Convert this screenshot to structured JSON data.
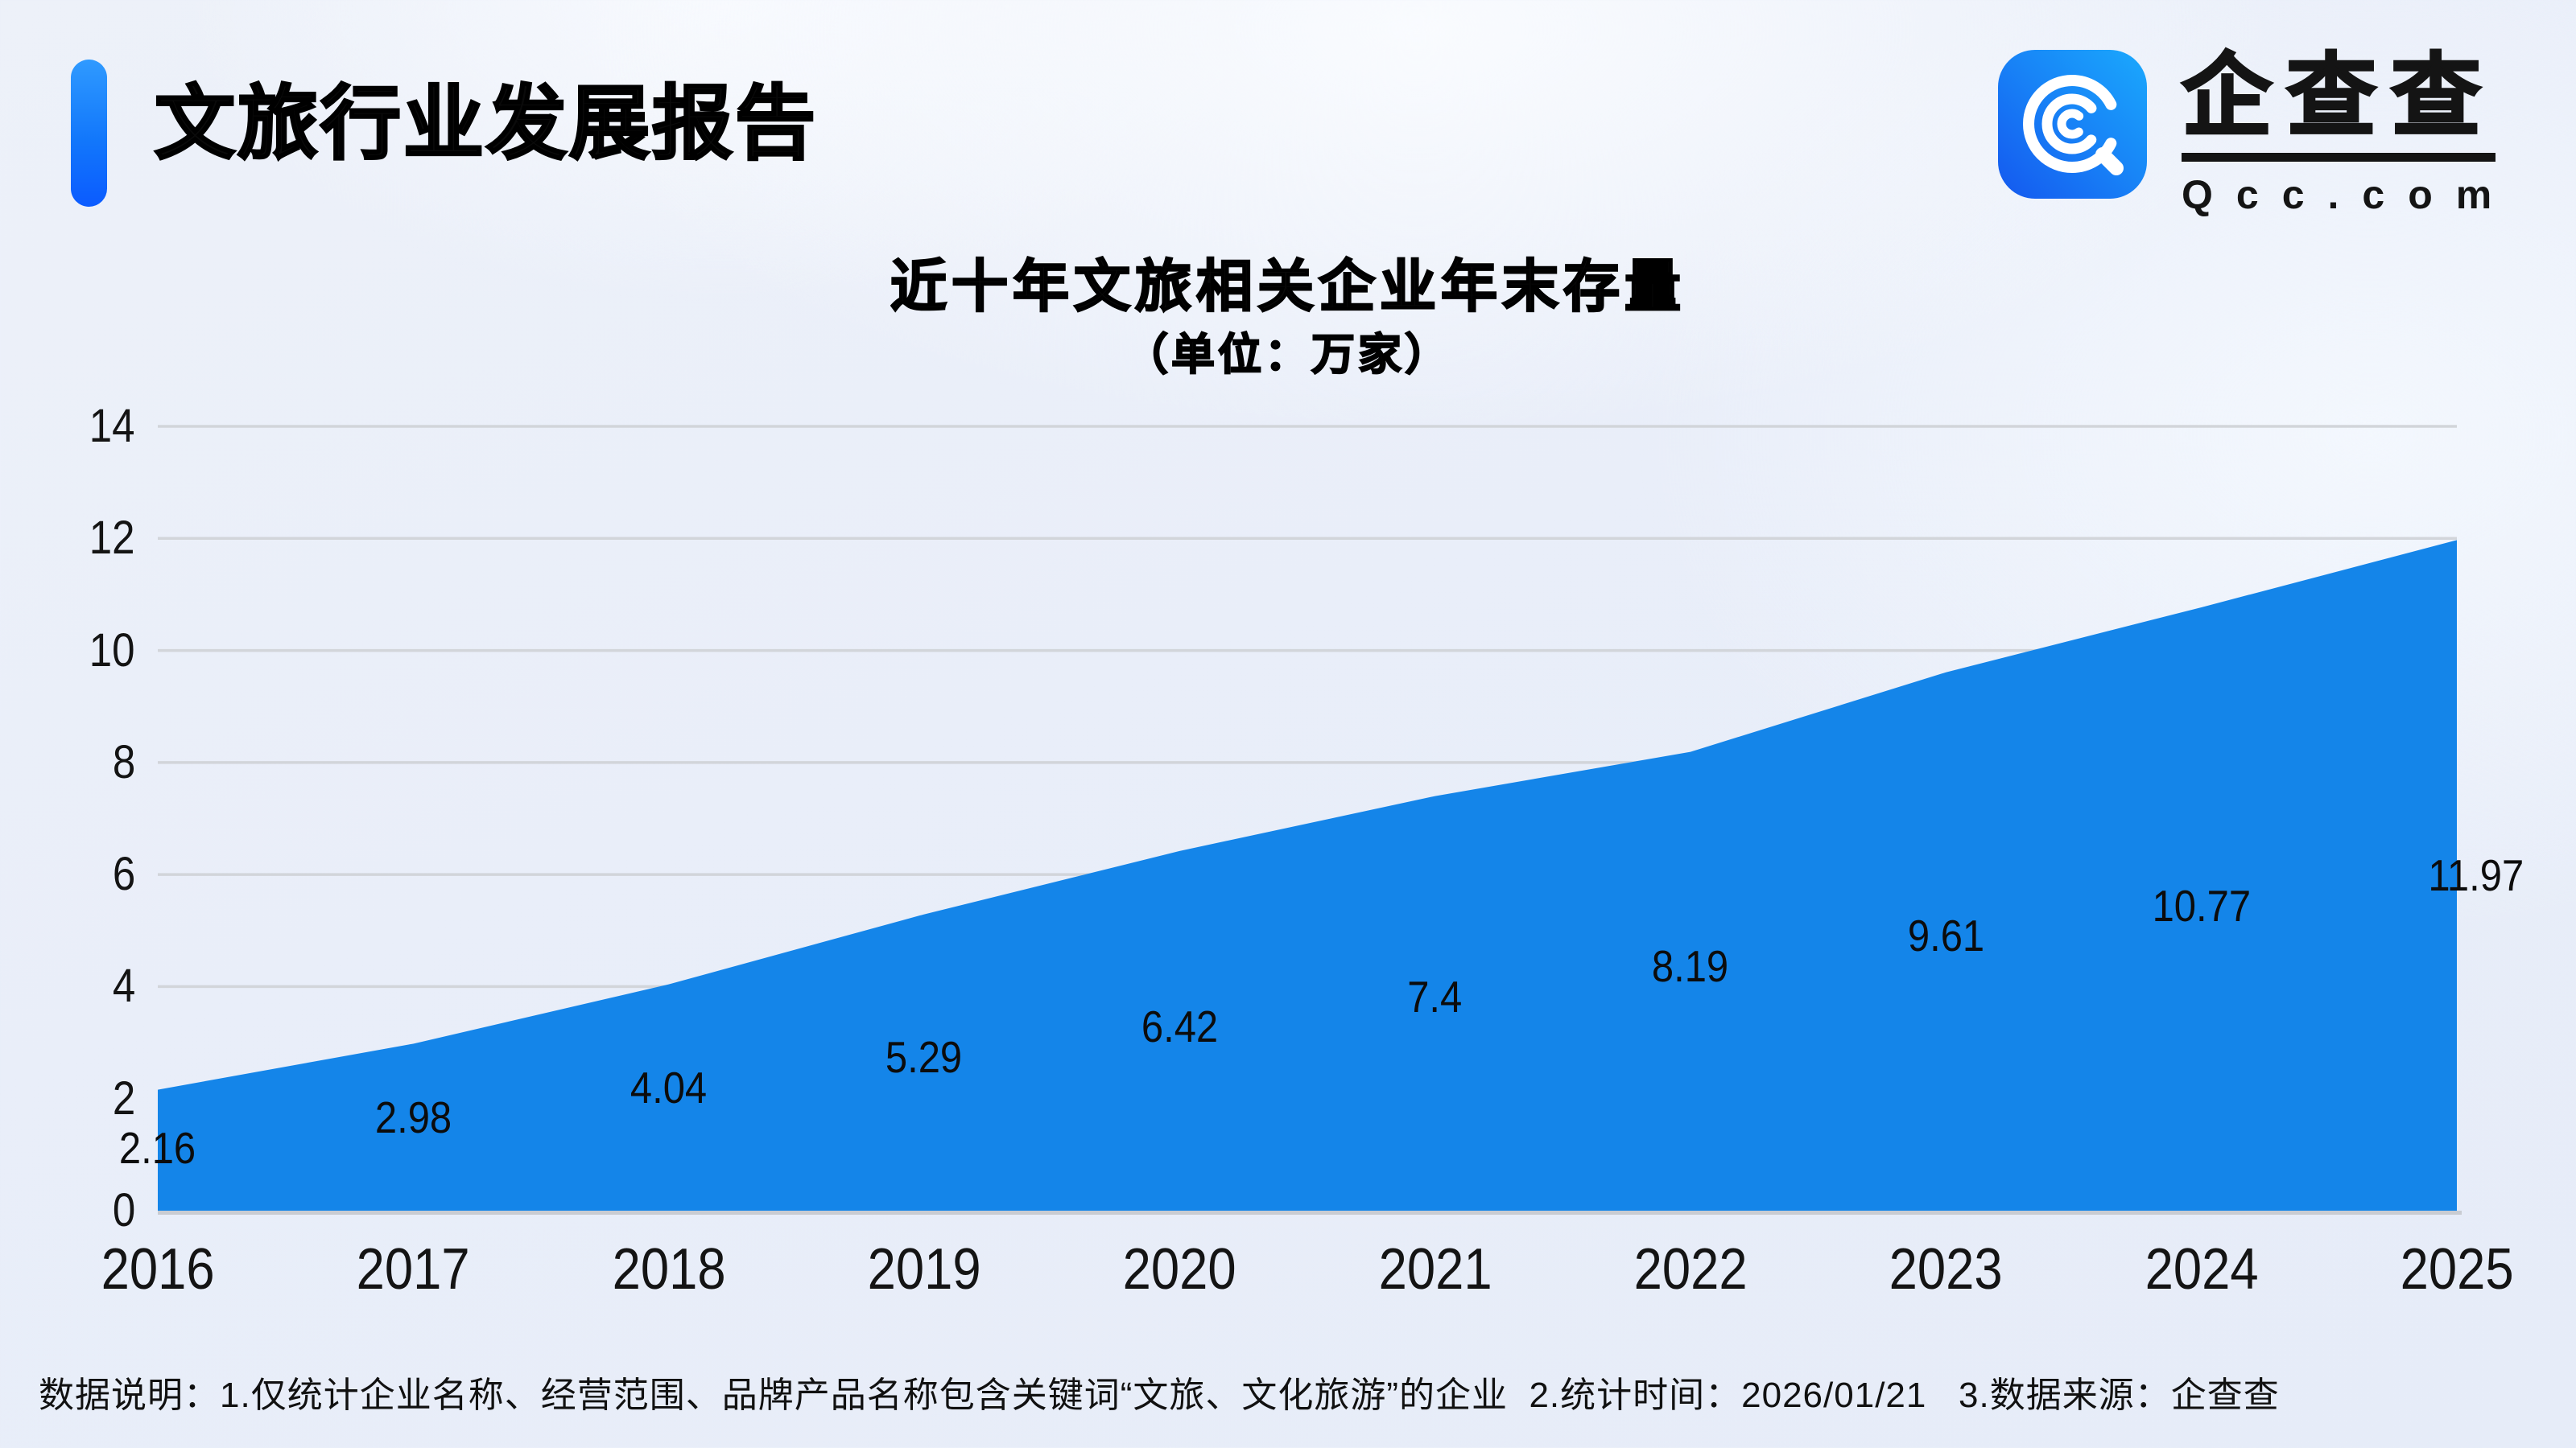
{
  "header": {
    "title": "文旅行业发展报告"
  },
  "logo": {
    "brand": "企查查",
    "domain": "Qcc.com",
    "icon": "qcc-magnifier-icon"
  },
  "chart_data": {
    "type": "area",
    "title": "近十年文旅相关企业年末存量",
    "subtitle": "（单位：万家）",
    "x": [
      "2016",
      "2017",
      "2018",
      "2019",
      "2020",
      "2021",
      "2022",
      "2023",
      "2024",
      "2025"
    ],
    "series": [
      {
        "name": "文旅相关企业年末存量（万家）",
        "values": [
          2.16,
          2.98,
          4.04,
          5.29,
          6.42,
          7.4,
          8.19,
          9.61,
          10.77,
          11.97
        ]
      }
    ],
    "labels": [
      "2.16",
      "2.98",
      "4.04",
      "5.29",
      "6.42",
      "7.4",
      "8.19",
      "9.61",
      "10.77",
      "11.97"
    ],
    "xlabel": "",
    "ylabel": "",
    "ylim": [
      0,
      14
    ],
    "yticks": [
      0,
      2,
      4,
      6,
      8,
      10,
      12,
      14
    ],
    "grid": true,
    "legend": "none",
    "area_color": "#1485E9"
  },
  "footer": {
    "note": "数据说明：1.仅统计企业名称、经营范围、品牌产品名称包含关键词“文旅、文化旅游”的企业  2.统计时间：2026/01/21   3.数据来源：企查查"
  },
  "colors": {
    "accent_top": "#2F9AFF",
    "accent_bottom": "#0B5BFF",
    "logo_left": "#1A5EF2",
    "logo_right": "#19A4FC",
    "grid_line": "#D2D5DA",
    "axis_line": "#C9CCD2",
    "area": "#1485E9",
    "text": "#0A0A0A"
  }
}
